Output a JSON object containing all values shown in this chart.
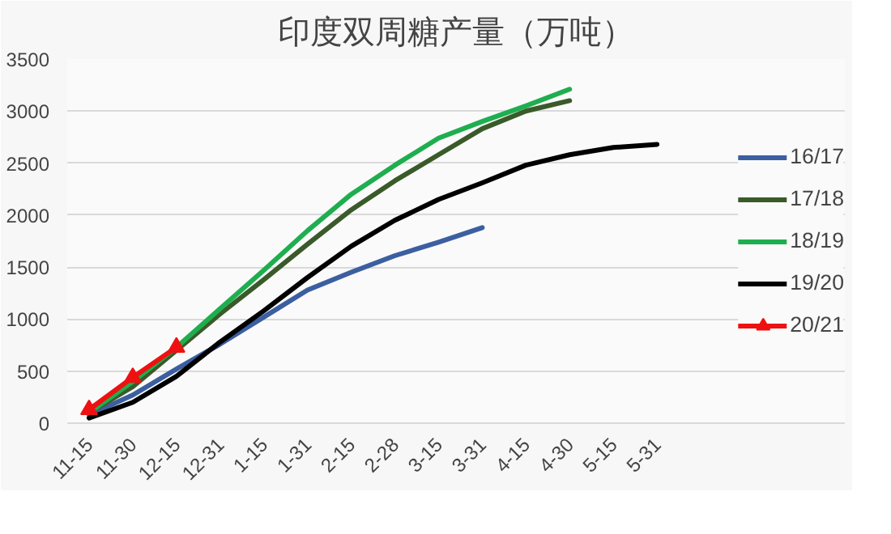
{
  "chart_data": {
    "type": "line",
    "title": "印度双周糖产量（万吨）",
    "categories": [
      "11-15",
      "11-30",
      "12-15",
      "12-31",
      "1-15",
      "1-31",
      "2-15",
      "2-28",
      "3-15",
      "3-31",
      "4-15",
      "4-30",
      "5-15",
      "5-31"
    ],
    "ylim": [
      0,
      3500
    ],
    "yticks": [
      0,
      500,
      1000,
      1500,
      2000,
      2500,
      3000,
      3500
    ],
    "grid": "y",
    "legend": "right",
    "series": [
      {
        "name": "16/17",
        "color": "#3b5fa0",
        "values": [
          80,
          270,
          520,
          760,
          1020,
          1280,
          1450,
          1610,
          1740,
          1880,
          null,
          null,
          null,
          null
        ]
      },
      {
        "name": "17/18",
        "color": "#3a5a2a",
        "values": [
          100,
          350,
          700,
          1050,
          1380,
          1720,
          2050,
          2330,
          2580,
          2830,
          3000,
          3100,
          null,
          null
        ]
      },
      {
        "name": "18/19",
        "color": "#1fae4f",
        "values": [
          100,
          400,
          730,
          1100,
          1470,
          1850,
          2200,
          2480,
          2740,
          2900,
          3050,
          3210,
          null,
          null
        ]
      },
      {
        "name": "19/20",
        "color": "#000000",
        "values": [
          50,
          200,
          450,
          780,
          1080,
          1400,
          1700,
          1950,
          2150,
          2310,
          2480,
          2580,
          2650,
          2680
        ]
      },
      {
        "name": "20/21",
        "color": "#ee1111",
        "marker": "triangle",
        "values": [
          130,
          440,
          730,
          null,
          null,
          null,
          null,
          null,
          null,
          null,
          null,
          null,
          null,
          null
        ]
      }
    ]
  }
}
